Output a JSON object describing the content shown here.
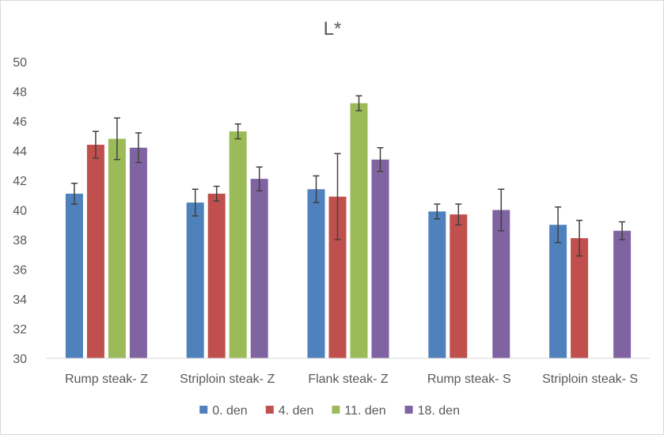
{
  "chart_data": {
    "type": "bar",
    "title": "L*",
    "xlabel": "",
    "ylabel": "",
    "ylim": [
      30,
      50
    ],
    "yticks": [
      30,
      32,
      34,
      36,
      38,
      40,
      42,
      44,
      46,
      48,
      50
    ],
    "grid": false,
    "legend_position": "bottom",
    "categories": [
      "Rump steak- Z",
      "Striploin steak- Z",
      "Flank steak- Z",
      "Rump steak- S",
      "Striploin steak- S"
    ],
    "series": [
      {
        "name": "0. den",
        "color": "#4f81bd",
        "values": [
          41.1,
          40.5,
          41.4,
          39.9,
          39.0
        ],
        "errors": [
          0.7,
          0.9,
          0.9,
          0.5,
          1.2
        ]
      },
      {
        "name": "4. den",
        "color": "#c0504d",
        "values": [
          44.4,
          41.1,
          40.9,
          39.7,
          38.1
        ],
        "errors": [
          0.9,
          0.5,
          2.9,
          0.7,
          1.2
        ]
      },
      {
        "name": "11. den",
        "color": "#9bbb59",
        "values": [
          44.8,
          45.3,
          47.2,
          null,
          null
        ],
        "errors": [
          1.4,
          0.5,
          0.5,
          null,
          null
        ]
      },
      {
        "name": "18. den",
        "color": "#8064a2",
        "values": [
          44.2,
          42.1,
          43.4,
          40.0,
          38.6
        ],
        "errors": [
          1.0,
          0.8,
          0.8,
          1.4,
          0.6
        ]
      }
    ]
  }
}
